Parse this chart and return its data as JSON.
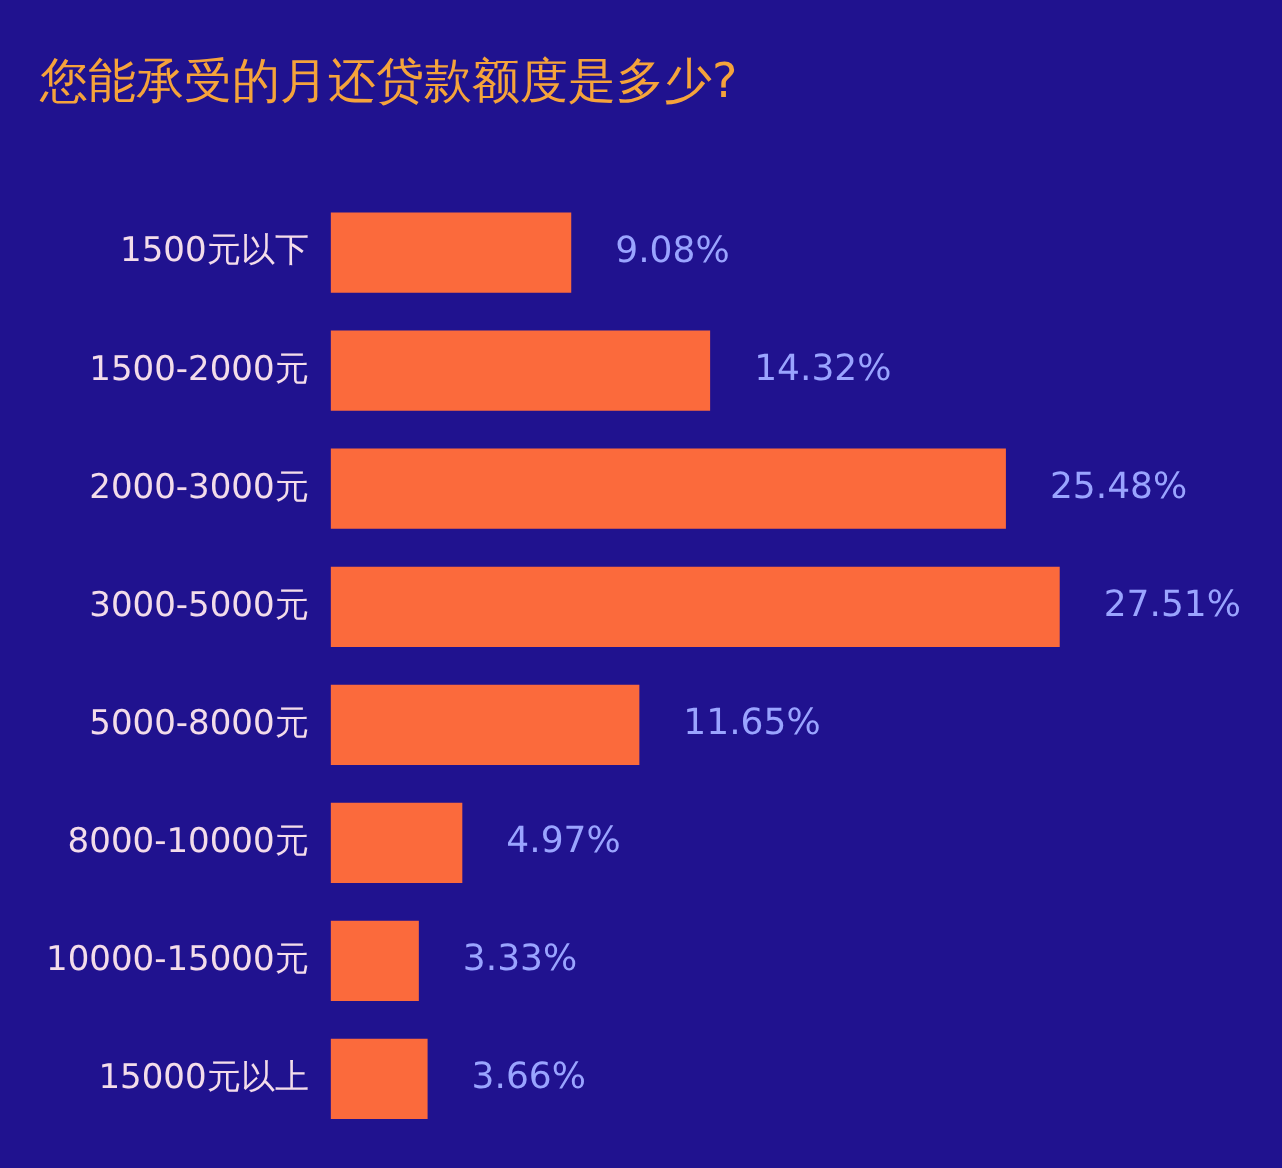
{
  "chart_data": {
    "type": "bar",
    "orientation": "horizontal",
    "title": "您能承受的月还贷款额度是多少?",
    "categories": [
      "1500元以下",
      "1500-2000元",
      "2000-3000元",
      "3000-5000元",
      "5000-8000元",
      "8000-10000元",
      "10000-15000元",
      "15000元以上"
    ],
    "values": [
      9.08,
      14.32,
      25.48,
      27.51,
      11.65,
      4.97,
      3.33,
      3.66
    ],
    "value_labels": [
      "9.08%",
      "14.32%",
      "25.48%",
      "27.51%",
      "11.65%",
      "4.97%",
      "3.33%",
      "3.66%"
    ],
    "color": "#fb6a3c"
  }
}
